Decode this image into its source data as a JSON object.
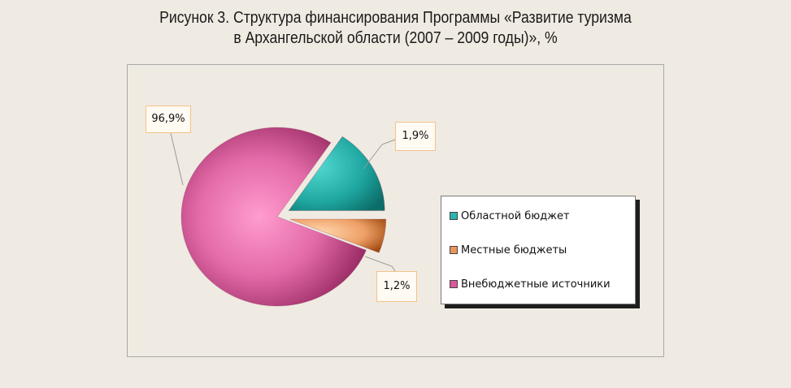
{
  "title_line1": "Рисунок 3. Структура финансирования Программы «Развитие туризма",
  "title_line2": "в Архангельской области (2007 – 2009 годы)», %",
  "chart_data": {
    "type": "pie",
    "title": "Рисунок 3. Структура финансирования Программы «Развитие туризма в Архангельской области (2007 – 2009 годы)», %",
    "categories": [
      "Областной бюджет",
      "Местные бюджеты",
      "Внебюджетные источники"
    ],
    "values": [
      1.9,
      1.2,
      96.9
    ],
    "data_labels": [
      "1,9%",
      "1,2%",
      "96,9%"
    ],
    "colors": [
      "#2bb3ad",
      "#e8955a",
      "#d9579a"
    ],
    "legend_position": "right"
  }
}
